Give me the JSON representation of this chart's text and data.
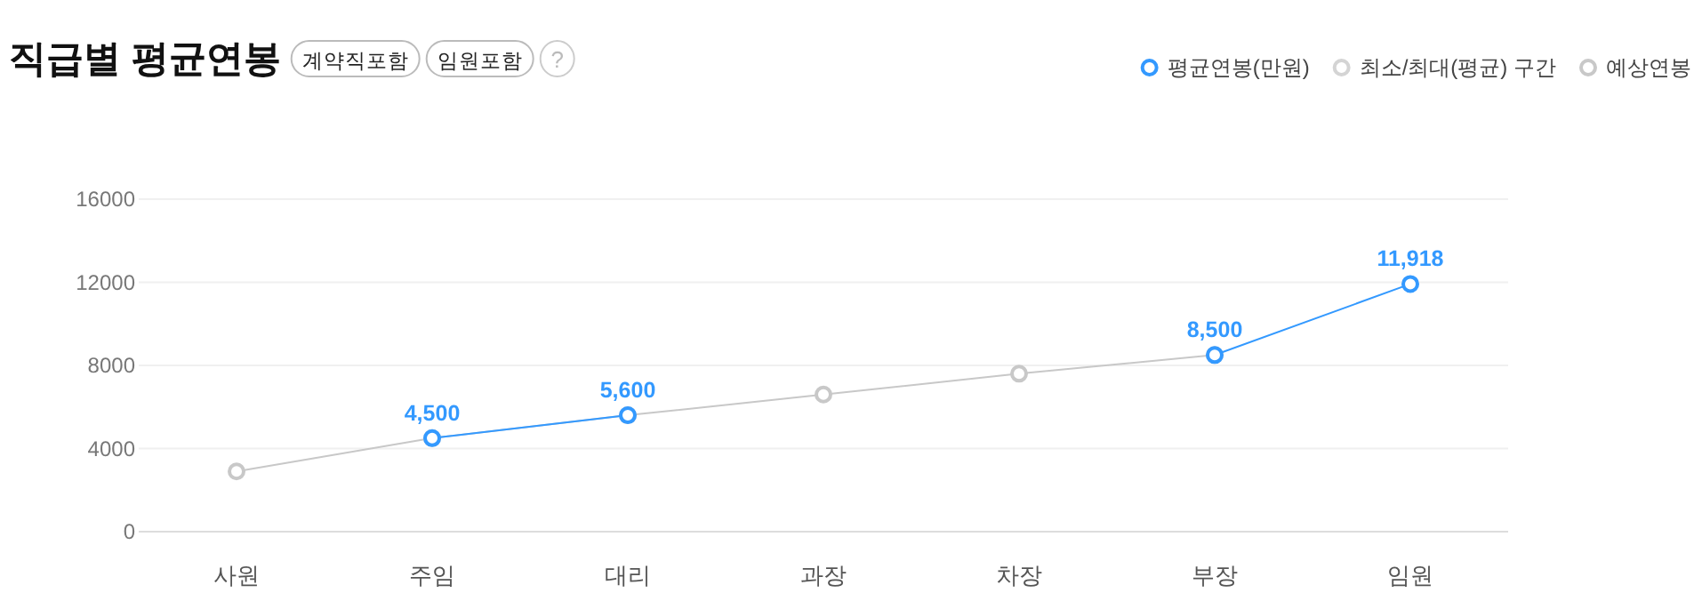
{
  "chart_data": {
    "type": "line",
    "title": "직급별 평균연봉",
    "annotations": [
      "계약직포함",
      "임원포함",
      "?"
    ],
    "categories": [
      "사원",
      "주임",
      "대리",
      "과장",
      "차장",
      "부장",
      "임원"
    ],
    "ylim": [
      0,
      16000
    ],
    "yticks": [
      0,
      4000,
      8000,
      12000,
      16000
    ],
    "grid": "y",
    "legend": "top right",
    "marker": "circle",
    "line_style": "solid",
    "series": [
      {
        "name": "평균연봉(만원)",
        "color": "#3399ff",
        "values": [
          null,
          4500,
          5600,
          null,
          null,
          8500,
          11918
        ],
        "value_labels": [
          null,
          "4,500",
          "5,600",
          null,
          null,
          "8,500",
          "11,918"
        ]
      },
      {
        "name": "최소/최대(평균) 구간",
        "color": "#d4d4d4",
        "values": [
          null,
          null,
          null,
          null,
          null,
          null,
          null
        ]
      },
      {
        "name": "예상연봉",
        "color": "#c8c8c8",
        "values": [
          2900,
          4500,
          5600,
          6600,
          7600,
          8500,
          null
        ]
      }
    ]
  }
}
